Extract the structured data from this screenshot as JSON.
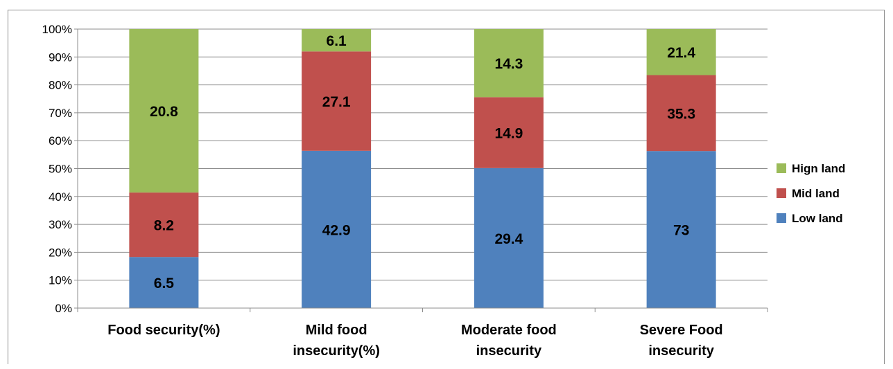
{
  "chart_data": {
    "type": "bar",
    "stacked": "percent",
    "categories": [
      [
        "Food security(%)"
      ],
      [
        "Mild food",
        "insecurity(%)"
      ],
      [
        "Moderate food",
        "insecurity"
      ],
      [
        "Severe Food",
        "insecurity"
      ]
    ],
    "series": [
      {
        "name": "Low land",
        "values": [
          6.5,
          42.9,
          29.4,
          73
        ],
        "color": "#4f81bd"
      },
      {
        "name": "Mid land",
        "values": [
          8.2,
          27.1,
          14.9,
          35.3
        ],
        "color": "#c0504d"
      },
      {
        "name": "Hign land",
        "values": [
          20.8,
          6.1,
          14.3,
          21.4
        ],
        "color": "#9bbb59"
      }
    ],
    "y_ticks": [
      "0%",
      "10%",
      "20%",
      "30%",
      "40%",
      "50%",
      "60%",
      "70%",
      "80%",
      "90%",
      "100%"
    ],
    "ylim": [
      0,
      100
    ],
    "grid": true,
    "legend_position": "right",
    "title": "",
    "xlabel": "",
    "ylabel": ""
  }
}
